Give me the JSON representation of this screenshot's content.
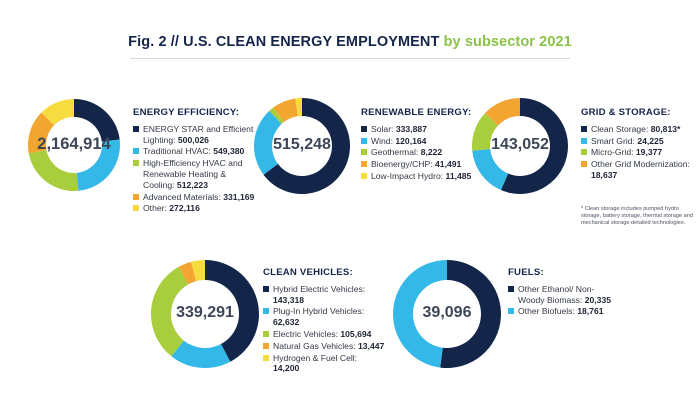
{
  "title": {
    "prefix": "Fig. 2 // U.S. CLEAN ENERGY EMPLOYMENT",
    "suffix": "by subsector 2021"
  },
  "colors": {
    "navy": "#14254a",
    "blue": "#34b8e8",
    "green": "#a8cd3d",
    "orange": "#f2a531",
    "yellow": "#f6dc3f"
  },
  "chart_data": [
    {
      "type": "pie",
      "title": "ENERGY EFFICIENCY:",
      "total_label": "2,164,914",
      "series": [
        {
          "name": "ENERGY STAR and Efficient Lighting:",
          "value_label": "500,026",
          "value": 500026,
          "color": "#14254a"
        },
        {
          "name": "Traditional HVAC:",
          "value_label": "549,380",
          "value": 549380,
          "color": "#34b8e8"
        },
        {
          "name": "High-Efficiency HVAC and Renewable Heating & Cooling:",
          "value_label": "512,223",
          "value": 512223,
          "color": "#a8cd3d"
        },
        {
          "name": "Advanced Materials:",
          "value_label": "331,169",
          "value": 331169,
          "color": "#f2a531"
        },
        {
          "name": "Other:",
          "value_label": "272,116",
          "value": 272116,
          "color": "#f6dc3f"
        }
      ]
    },
    {
      "type": "pie",
      "title": "RENEWABLE ENERGY:",
      "total_label": "515,248",
      "series": [
        {
          "name": "Solar:",
          "value_label": "333,887",
          "value": 333887,
          "color": "#14254a"
        },
        {
          "name": "Wind:",
          "value_label": "120,164",
          "value": 120164,
          "color": "#34b8e8"
        },
        {
          "name": "Geothermal:",
          "value_label": "8,222",
          "value": 8222,
          "color": "#a8cd3d"
        },
        {
          "name": "Bioenergy/CHP:",
          "value_label": "41,491",
          "value": 41491,
          "color": "#f2a531"
        },
        {
          "name": "Low-Impact Hydro:",
          "value_label": "11,485",
          "value": 11485,
          "color": "#f6dc3f"
        }
      ]
    },
    {
      "type": "pie",
      "title": "GRID & STORAGE:",
      "total_label": "143,052",
      "note": "* Clean storage includes pumped hydro storage, battery storage, thermal storage and mechanical storage detailed technologies.",
      "series": [
        {
          "name": "Clean Storage:",
          "value_label": "80,813*",
          "value": 80813,
          "color": "#14254a"
        },
        {
          "name": "Smart Grid:",
          "value_label": "24,225",
          "value": 24225,
          "color": "#34b8e8"
        },
        {
          "name": "Micro-Grid:",
          "value_label": "19,377",
          "value": 19377,
          "color": "#a8cd3d"
        },
        {
          "name": "Other Grid Modernization:",
          "value_label": "18,637",
          "value": 18637,
          "color": "#f2a531"
        }
      ]
    },
    {
      "type": "pie",
      "title": "CLEAN VEHICLES:",
      "total_label": "339,291",
      "series": [
        {
          "name": "Hybrid Electric Vehicles:",
          "value_label": "143,318",
          "value": 143318,
          "color": "#14254a"
        },
        {
          "name": "Plug-In Hybrid Vehicles:",
          "value_label": "62,632",
          "value": 62632,
          "color": "#34b8e8"
        },
        {
          "name": "Electric Vehicles:",
          "value_label": "105,694",
          "value": 105694,
          "color": "#a8cd3d"
        },
        {
          "name": "Natural Gas Vehicles:",
          "value_label": "13,447",
          "value": 13447,
          "color": "#f2a531"
        },
        {
          "name": "Hydrogen & Fuel Cell:",
          "value_label": "14,200",
          "value": 14200,
          "color": "#f6dc3f"
        }
      ]
    },
    {
      "type": "pie",
      "title": "FUELS:",
      "total_label": "39,096",
      "series": [
        {
          "name": "Other Ethanol/ Non-Woody Biomass:",
          "value_label": "20,335",
          "value": 20335,
          "color": "#14254a"
        },
        {
          "name": "Other Biofuels:",
          "value_label": "18,761",
          "value": 18761,
          "color": "#34b8e8"
        }
      ]
    }
  ]
}
